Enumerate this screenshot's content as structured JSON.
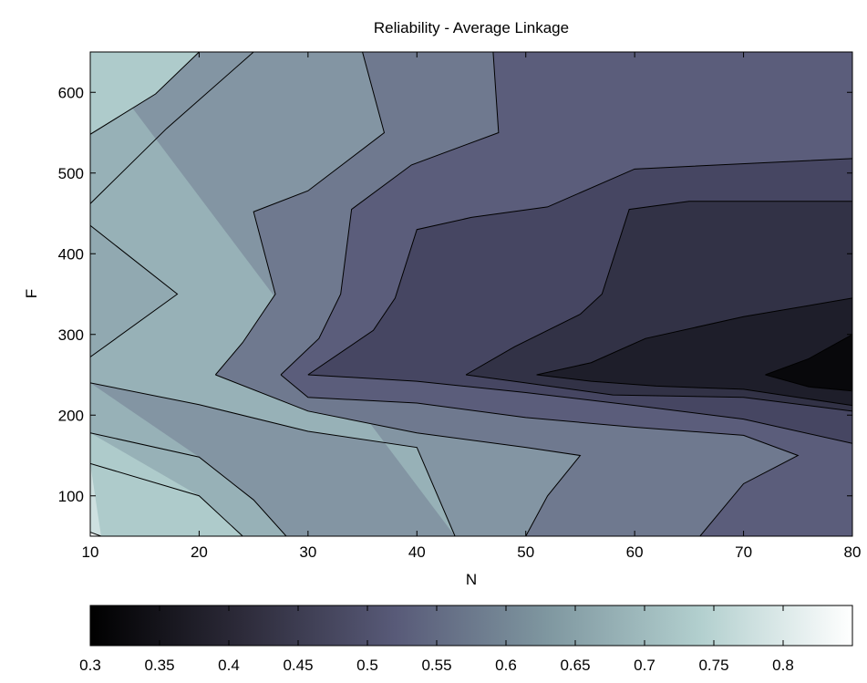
{
  "chart_data": {
    "type": "contour",
    "title": "Reliability - Average Linkage",
    "xlabel": "N",
    "ylabel": "F",
    "xlim": [
      10,
      80
    ],
    "ylim": [
      50,
      650
    ],
    "x_ticks": [
      10,
      20,
      30,
      40,
      50,
      60,
      70,
      80
    ],
    "x_tick_labels": [
      "10",
      "20",
      "30",
      "40",
      "50",
      "60",
      "70",
      "80"
    ],
    "y_ticks": [
      100,
      200,
      300,
      400,
      500,
      600
    ],
    "y_tick_labels": [
      "100",
      "200",
      "300",
      "400",
      "500",
      "600"
    ],
    "colormap": "bone",
    "colorbar": {
      "range": [
        0.3,
        0.85
      ],
      "ticks": [
        0.3,
        0.35,
        0.4,
        0.45,
        0.5,
        0.55,
        0.6,
        0.65,
        0.7,
        0.75,
        0.8
      ],
      "tick_labels": [
        "0.3",
        "0.35",
        "0.4",
        "0.45",
        "0.5",
        "0.55",
        "0.6",
        "0.65",
        "0.7",
        "0.75",
        "0.8"
      ]
    },
    "contour_lines": [
      {
        "level": 0.35,
        "points": [
          [
            72,
            250
          ],
          [
            76,
            270
          ],
          [
            80,
            300
          ]
        ]
      },
      {
        "level": 0.35,
        "points": [
          [
            72,
            250
          ],
          [
            76,
            235
          ],
          [
            80,
            230
          ]
        ]
      },
      {
        "level": 0.4,
        "points": [
          [
            51,
            250
          ],
          [
            56,
            265
          ],
          [
            61,
            295
          ],
          [
            70,
            322
          ],
          [
            80,
            345
          ]
        ]
      },
      {
        "level": 0.4,
        "points": [
          [
            51,
            250
          ],
          [
            56,
            242
          ],
          [
            62,
            236
          ],
          [
            70,
            232
          ],
          [
            80,
            212
          ]
        ]
      },
      {
        "level": 0.45,
        "points": [
          [
            44.5,
            250
          ],
          [
            49,
            285
          ],
          [
            55,
            325
          ],
          [
            57,
            350
          ],
          [
            59.5,
            455
          ],
          [
            65,
            465
          ],
          [
            80,
            465
          ]
        ]
      },
      {
        "level": 0.45,
        "points": [
          [
            44.5,
            250
          ],
          [
            50,
            240
          ],
          [
            58,
            225
          ],
          [
            70,
            222
          ],
          [
            80,
            205
          ]
        ]
      },
      {
        "level": 0.5,
        "points": [
          [
            30,
            250
          ],
          [
            36,
            305
          ],
          [
            38,
            345
          ],
          [
            40,
            430
          ],
          [
            45,
            445
          ],
          [
            52,
            458
          ],
          [
            60,
            505
          ],
          [
            80,
            518
          ]
        ]
      },
      {
        "level": 0.5,
        "points": [
          [
            30,
            250
          ],
          [
            40,
            242
          ],
          [
            50,
            228
          ],
          [
            60,
            212
          ],
          [
            70,
            195
          ],
          [
            80,
            165
          ]
        ]
      },
      {
        "level": 0.55,
        "points": [
          [
            27.5,
            250
          ],
          [
            31,
            295
          ],
          [
            33,
            350
          ],
          [
            34,
            455
          ],
          [
            39.5,
            510
          ],
          [
            47.5,
            550
          ],
          [
            47,
            650
          ]
        ]
      },
      {
        "level": 0.55,
        "points": [
          [
            27.5,
            250
          ],
          [
            30,
            222
          ],
          [
            40,
            215
          ],
          [
            50,
            197
          ],
          [
            60,
            185
          ],
          [
            70,
            175
          ],
          [
            75,
            150
          ],
          [
            70,
            115
          ],
          [
            66,
            50
          ]
        ]
      },
      {
        "level": 0.6,
        "points": [
          [
            21.5,
            250
          ],
          [
            24,
            290
          ],
          [
            27,
            350
          ],
          [
            25,
            452
          ],
          [
            30,
            478
          ],
          [
            37,
            550
          ],
          [
            35,
            650
          ]
        ]
      },
      {
        "level": 0.6,
        "points": [
          [
            21.5,
            250
          ],
          [
            30,
            205
          ],
          [
            40,
            178
          ],
          [
            50,
            160
          ],
          [
            55,
            150
          ],
          [
            52,
            100
          ],
          [
            50,
            50
          ]
        ]
      },
      {
        "level": 0.65,
        "points": [
          [
            10,
            272
          ],
          [
            18,
            350
          ],
          [
            10,
            435
          ]
        ]
      },
      {
        "level": 0.65,
        "points": [
          [
            10,
            462
          ],
          [
            17,
            555
          ],
          [
            25,
            650
          ]
        ]
      },
      {
        "level": 0.65,
        "points": [
          [
            10,
            240
          ],
          [
            20,
            213
          ],
          [
            30,
            180
          ],
          [
            40,
            160
          ],
          [
            43.5,
            50
          ]
        ]
      },
      {
        "level": 0.7,
        "points": [
          [
            10,
            548
          ],
          [
            16,
            598
          ],
          [
            20,
            650
          ]
        ]
      },
      {
        "level": 0.7,
        "points": [
          [
            10,
            178
          ],
          [
            20,
            148
          ],
          [
            25,
            95
          ],
          [
            28,
            50
          ]
        ]
      },
      {
        "level": 0.75,
        "points": [
          [
            10,
            140
          ],
          [
            20,
            100
          ],
          [
            24,
            50
          ]
        ]
      },
      {
        "level": 0.8,
        "points": [
          [
            10,
            55
          ],
          [
            11,
            50
          ]
        ]
      }
    ]
  }
}
